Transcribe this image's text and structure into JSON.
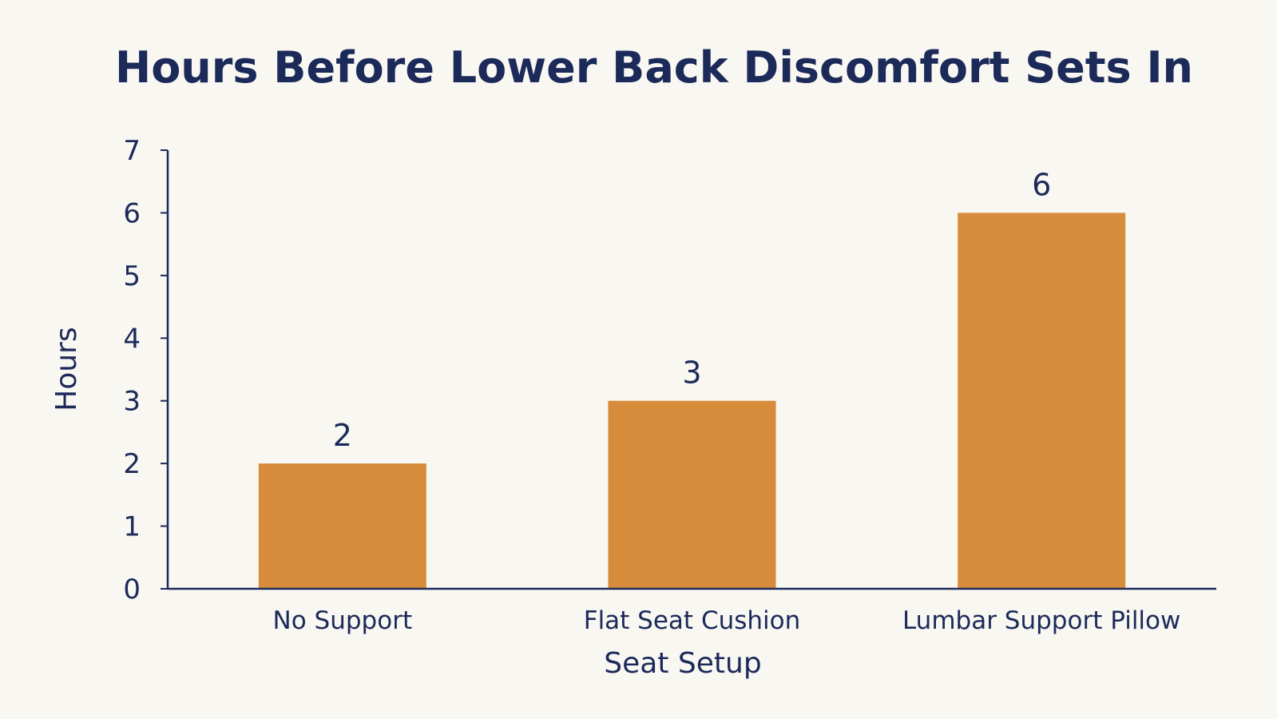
{
  "chart_data": {
    "type": "bar",
    "title": "Hours Before Lower Back Discomfort Sets In",
    "xlabel": "Seat Setup",
    "ylabel": "Hours",
    "categories": [
      "No Support",
      "Flat Seat Cushion",
      "Lumbar Support Pillow"
    ],
    "values": [
      2,
      3,
      6
    ],
    "data_labels": [
      "2",
      "3",
      "6"
    ],
    "ylim": [
      0,
      7
    ],
    "yticks": [
      0,
      1,
      2,
      3,
      4,
      5,
      6,
      7
    ],
    "grid": false,
    "legend": "none",
    "colors": {
      "bar": "#d68c3a",
      "text": "#1c2a5a",
      "axis": "#1c2a5a",
      "background": "#f9f7f2"
    }
  }
}
